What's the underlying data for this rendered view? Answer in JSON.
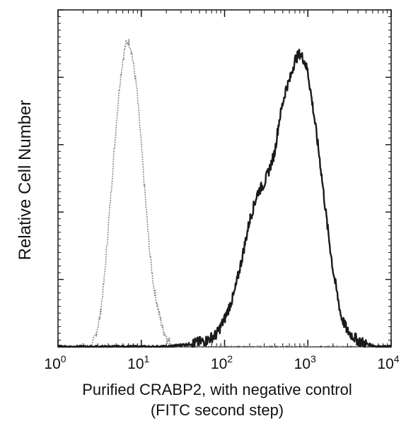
{
  "chart_data": {
    "type": "line",
    "title": "",
    "xlabel_line1": "Purified CRABP2, with negative control",
    "xlabel_line2": "(FITC second step)",
    "ylabel": "Relative Cell Number",
    "x_scale": "log",
    "xlim": [
      1,
      10000
    ],
    "ylim": [
      0,
      1
    ],
    "grid": false,
    "legend": "none",
    "x_ticks": [
      {
        "value": 1,
        "base": "10",
        "exp": "0"
      },
      {
        "value": 10,
        "base": "10",
        "exp": "1"
      },
      {
        "value": 100,
        "base": "10",
        "exp": "2"
      },
      {
        "value": 1000,
        "base": "10",
        "exp": "3"
      },
      {
        "value": 10000,
        "base": "10",
        "exp": "4"
      }
    ],
    "series": [
      {
        "color": "#8a8a8a",
        "style": "light",
        "x": [
          1,
          2,
          2.5,
          2.8,
          3.2,
          3.6,
          4.0,
          4.5,
          5.0,
          5.5,
          6.0,
          6.5,
          7.0,
          7.5,
          8.0,
          8.8,
          9.5,
          10.5,
          11.5,
          12.5,
          14,
          16,
          18,
          21,
          25,
          40,
          100,
          10000
        ],
        "y": [
          0.0,
          0.0,
          0.0,
          0.03,
          0.1,
          0.22,
          0.38,
          0.56,
          0.72,
          0.85,
          0.93,
          0.98,
          0.99,
          0.97,
          0.92,
          0.84,
          0.73,
          0.58,
          0.44,
          0.32,
          0.2,
          0.12,
          0.06,
          0.02,
          0.0,
          0.0,
          0.0,
          0.0
        ]
      },
      {
        "color": "#1a1a1a",
        "style": "dark",
        "x": [
          1,
          20,
          40,
          60,
          80,
          100,
          130,
          160,
          200,
          250,
          300,
          350,
          400,
          450,
          500,
          550,
          600,
          700,
          800,
          900,
          1000,
          1200,
          1400,
          1700,
          2000,
          2500,
          3000,
          4000,
          5000,
          7000,
          10000
        ],
        "y": [
          0.0,
          0.0,
          0.01,
          0.02,
          0.04,
          0.09,
          0.17,
          0.28,
          0.41,
          0.5,
          0.53,
          0.58,
          0.63,
          0.73,
          0.79,
          0.84,
          0.86,
          0.93,
          0.95,
          0.93,
          0.89,
          0.74,
          0.6,
          0.4,
          0.25,
          0.1,
          0.05,
          0.02,
          0.01,
          0.0,
          0.0
        ]
      }
    ]
  }
}
